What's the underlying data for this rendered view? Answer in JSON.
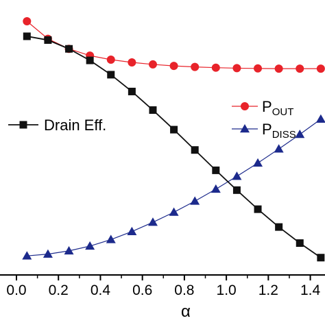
{
  "chart_data": {
    "type": "line",
    "title": "",
    "xlabel": "α",
    "ylabel": "",
    "xlim": [
      0.0,
      1.47
    ],
    "ylim": [
      0,
      1
    ],
    "x_ticks": [
      0.0,
      0.2,
      0.4,
      0.6,
      0.8,
      1.0,
      1.2,
      1.4
    ],
    "x_tick_labels": [
      "0.0",
      "0.2",
      "0.4",
      "0.6",
      "0.8",
      "1.0",
      "1.2",
      "1.4"
    ],
    "x": [
      0.05,
      0.15,
      0.25,
      0.35,
      0.45,
      0.55,
      0.65,
      0.75,
      0.85,
      0.95,
      1.05,
      1.15,
      1.25,
      1.35,
      1.45
    ],
    "legend_position": "right-center",
    "series": [
      {
        "name": "P_OUT",
        "label_main": "P",
        "label_sub": "OUT",
        "color": "#e8232a",
        "marker": "circle",
        "values": [
          0.97,
          0.9,
          0.86,
          0.833,
          0.817,
          0.806,
          0.798,
          0.792,
          0.788,
          0.785,
          0.783,
          0.782,
          0.781,
          0.781,
          0.781
        ]
      },
      {
        "name": "P_DISS",
        "label_main": "P",
        "label_sub": "DISS",
        "color": "#1c2a8c",
        "marker": "triangle",
        "values": [
          0.035,
          0.042,
          0.055,
          0.074,
          0.1,
          0.132,
          0.169,
          0.209,
          0.253,
          0.301,
          0.352,
          0.405,
          0.461,
          0.519,
          0.58
        ]
      },
      {
        "name": "Drain Eff.",
        "label_main": "Drain Eff.",
        "label_sub": "",
        "color": "#111111",
        "marker": "square",
        "values": [
          0.91,
          0.895,
          0.86,
          0.814,
          0.757,
          0.69,
          0.616,
          0.538,
          0.457,
          0.376,
          0.297,
          0.221,
          0.15,
          0.086,
          0.028
        ]
      }
    ]
  }
}
